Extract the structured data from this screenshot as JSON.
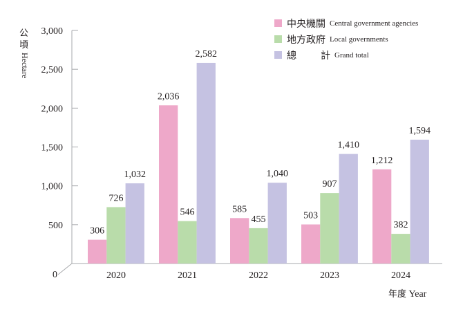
{
  "chart_data": {
    "type": "bar",
    "title": "",
    "categories": [
      "2020",
      "2021",
      "2022",
      "2023",
      "2024"
    ],
    "series": [
      {
        "name": "中央機關 Central government agencies",
        "color": "#eea8c9",
        "values": [
          306,
          2036,
          585,
          503,
          1212
        ],
        "labels": [
          "306",
          "2,036",
          "585",
          "503",
          "1,212"
        ]
      },
      {
        "name": "地方政府 Local governments",
        "color": "#b9dcaa",
        "values": [
          726,
          546,
          455,
          907,
          382
        ],
        "labels": [
          "726",
          "546",
          "455",
          "907",
          "382"
        ]
      },
      {
        "name": "總計 Grand total",
        "color": "#c5c2e2",
        "values": [
          1032,
          2582,
          1040,
          1410,
          1594
        ],
        "labels": [
          "1,032",
          "2,582",
          "1,040",
          "1,410",
          "1,594"
        ]
      }
    ],
    "ylim": [
      0,
      3000
    ],
    "yticks": [
      0,
      500,
      1000,
      1500,
      2000,
      2500,
      3000
    ],
    "ytick_labels": [
      "0",
      "500",
      "1,000",
      "1,500",
      "2,000",
      "2,500",
      "3,000"
    ],
    "ylabel": "公頃 Hectare",
    "xlabel": "年度 Year",
    "grid": false,
    "legend_position": "top-right"
  },
  "legend": [
    {
      "zh": "中央機關",
      "en": "Central government agencies",
      "color": "#eea8c9"
    },
    {
      "zh": "地方政府",
      "en": "Local governments",
      "color": "#b9dcaa"
    },
    {
      "zh_left": "總",
      "zh_right": "計",
      "en": "Grand total",
      "color": "#c5c2e2"
    }
  ],
  "axis": {
    "ylabel_zh_1": "公",
    "ylabel_zh_2": "頃",
    "ylabel_en": "Hectare",
    "xlabel_zh": "年度",
    "xlabel_en": "Year"
  }
}
